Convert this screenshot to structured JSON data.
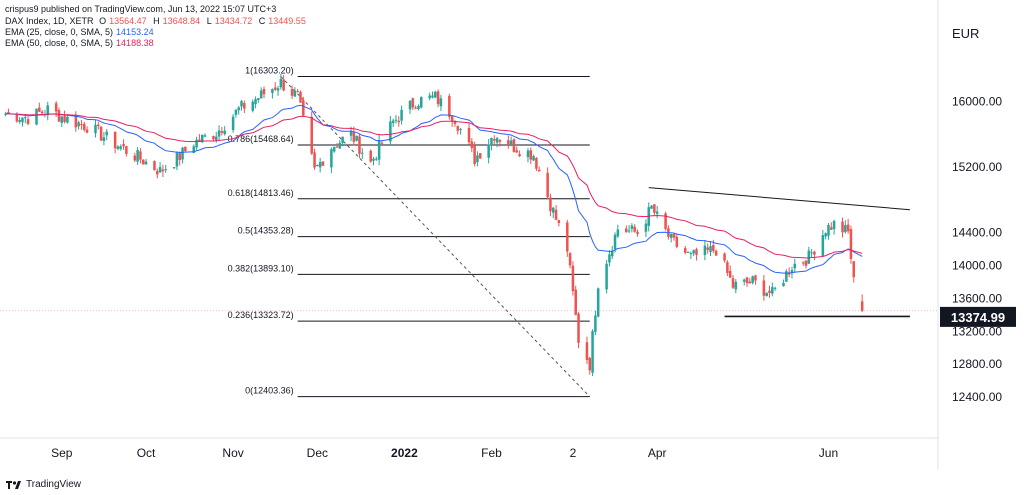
{
  "header": {
    "published": "crispus9 published on TradingView.com, Jun 13, 2022 15:07 UTC+3",
    "symbol": "DAX Index, 1D, XETR",
    "ohlc": {
      "o_label": "O",
      "o": "13564.47",
      "h_label": "H",
      "h": "13648.84",
      "l_label": "L",
      "l": "13434.72",
      "c_label": "C",
      "c": "13449.55"
    },
    "ema25": {
      "label": "EMA (25, close, 0, SMA, 5)",
      "value": "14153.24"
    },
    "ema50": {
      "label": "EMA (50, close, 0, SMA, 5)",
      "value": "14188.38"
    }
  },
  "currency": "EUR",
  "brand": {
    "name": "TradingView",
    "icon": "tradingview-logo-icon"
  },
  "colors": {
    "up": "#26a69a",
    "down": "#ef5350",
    "ema25": "#2962ff",
    "ema50": "#e91e63",
    "text": "#131722"
  },
  "chart_data": {
    "type": "candlestick",
    "y_ticks": [
      "16000.00",
      "15200.00",
      "14400.00",
      "14000.00",
      "13600.00",
      "13200.00",
      "12800.00",
      "12400.00"
    ],
    "y_tick_values": [
      16000,
      15200,
      14400,
      14000,
      13600,
      13200,
      12800,
      12400
    ],
    "ylim": [
      11900,
      16650
    ],
    "x_labels": [
      "Sep",
      "Oct",
      "Nov",
      "Dec",
      "2022",
      "Feb",
      "2",
      "Apr",
      "Jun"
    ],
    "x_label_dates": [
      "2021-09-01",
      "2021-10-01",
      "2021-11-01",
      "2021-12-01",
      "2022-01-01",
      "2022-02-01",
      "2022-03-02",
      "2022-04-01",
      "2022-06-01"
    ],
    "xlim": [
      "2021-08-10",
      "2022-07-10"
    ],
    "last_price": "13374.99",
    "last_price_value": 13375,
    "fibonacci": [
      {
        "label": "1(16303.20)",
        "value": 16303.2
      },
      {
        "label": "0.786(15468.64)",
        "value": 15468.64
      },
      {
        "label": "0.618(14813.46)",
        "value": 14813.46
      },
      {
        "label": "0.5(14353.28)",
        "value": 14353.28
      },
      {
        "label": "0.382(13893.10)",
        "value": 13893.1
      },
      {
        "label": "0.236(13323.72)",
        "value": 13323.72
      },
      {
        "label": "0(12403.36)",
        "value": 12403.36
      }
    ],
    "fib_range": [
      "2021-11-24",
      "2022-03-08"
    ],
    "trend_line": {
      "from": [
        "2021-11-18",
        16303
      ],
      "to": [
        "2022-03-08",
        12403
      ]
    },
    "resistance_line": {
      "from": [
        "2022-03-29",
        14950
      ],
      "to": [
        "2022-06-30",
        14680
      ]
    },
    "support_line": {
      "from": [
        "2022-04-25",
        13380
      ],
      "to": [
        "2022-06-30",
        13380
      ]
    },
    "close_anchors": [
      [
        "2021-08-12",
        15850
      ],
      [
        "2021-08-20",
        15800
      ],
      [
        "2021-08-27",
        15900
      ],
      [
        "2021-09-03",
        15780
      ],
      [
        "2021-09-10",
        15700
      ],
      [
        "2021-09-17",
        15550
      ],
      [
        "2021-09-24",
        15400
      ],
      [
        "2021-09-30",
        15280
      ],
      [
        "2021-10-06",
        15150
      ],
      [
        "2021-10-12",
        15300
      ],
      [
        "2021-10-18",
        15500
      ],
      [
        "2021-10-26",
        15620
      ],
      [
        "2021-11-03",
        15900
      ],
      [
        "2021-11-10",
        16050
      ],
      [
        "2021-11-18",
        16230
      ],
      [
        "2021-11-24",
        16050
      ],
      [
        "2021-11-30",
        15150
      ],
      [
        "2021-12-06",
        15450
      ],
      [
        "2021-12-13",
        15600
      ],
      [
        "2021-12-20",
        15250
      ],
      [
        "2021-12-28",
        15750
      ],
      [
        "2022-01-05",
        16000
      ],
      [
        "2022-01-12",
        16050
      ],
      [
        "2022-01-19",
        15800
      ],
      [
        "2022-01-26",
        15300
      ],
      [
        "2022-02-02",
        15600
      ],
      [
        "2022-02-09",
        15450
      ],
      [
        "2022-02-16",
        15350
      ],
      [
        "2022-02-22",
        14750
      ],
      [
        "2022-02-28",
        14200
      ],
      [
        "2022-03-04",
        13100
      ],
      [
        "2022-03-08",
        12800
      ],
      [
        "2022-03-11",
        13800
      ],
      [
        "2022-03-18",
        14450
      ],
      [
        "2022-03-25",
        14400
      ],
      [
        "2022-03-30",
        14700
      ],
      [
        "2022-04-06",
        14300
      ],
      [
        "2022-04-13",
        14100
      ],
      [
        "2022-04-22",
        14200
      ],
      [
        "2022-04-28",
        13750
      ],
      [
        "2022-05-05",
        13800
      ],
      [
        "2022-05-12",
        13650
      ],
      [
        "2022-05-19",
        14000
      ],
      [
        "2022-05-25",
        14100
      ],
      [
        "2022-05-31",
        14450
      ],
      [
        "2022-06-03",
        14500
      ],
      [
        "2022-06-08",
        14400
      ],
      [
        "2022-06-10",
        13800
      ],
      [
        "2022-06-13",
        13450
      ]
    ]
  }
}
